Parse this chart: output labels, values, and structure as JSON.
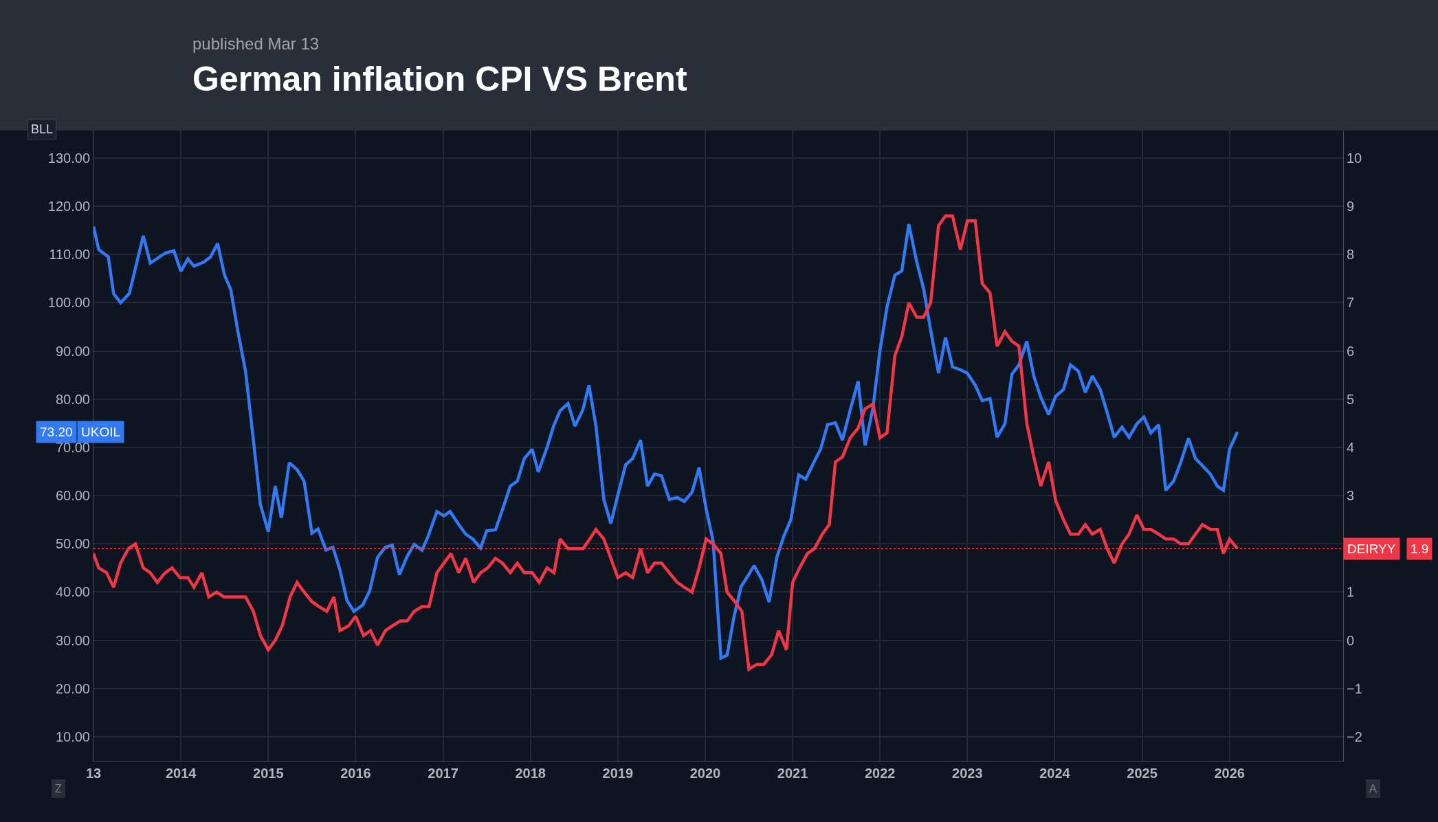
{
  "chart_data": {
    "type": "line",
    "title": "German inflation CPI VS Brent",
    "subtitle": "published Mar 13",
    "xlim": [
      2013,
      2027.3
    ],
    "xticks": [
      {
        "value": 2013,
        "label": "13"
      },
      2014,
      2015,
      2016,
      2017,
      2018,
      2019,
      2020,
      2021,
      2022,
      2023,
      2024,
      2025,
      2026
    ],
    "ylim": [
      5,
      135.7
    ],
    "yticks": [
      {
        "value": 10,
        "label": "10.00"
      },
      {
        "value": 20,
        "label": "20.00"
      },
      {
        "value": 30,
        "label": "30.00"
      },
      {
        "value": 40,
        "label": "40.00"
      },
      {
        "value": 50,
        "label": "50.00"
      },
      {
        "value": 60,
        "label": "60.00"
      },
      {
        "value": 70,
        "label": "70.00"
      },
      {
        "value": 80,
        "label": "80.00"
      },
      {
        "value": 90,
        "label": "90.00"
      },
      {
        "value": 100,
        "label": "100.00"
      },
      {
        "value": 110,
        "label": "110.00"
      },
      {
        "value": 120,
        "label": "120.00"
      },
      {
        "value": 130,
        "label": "130.00"
      }
    ],
    "y2lim": [
      -2.5,
      10.57
    ],
    "y2ticks": [
      {
        "value": -2,
        "label": "−2"
      },
      {
        "value": -1,
        "label": "−1"
      },
      0,
      1,
      3,
      4,
      5,
      6,
      7,
      8,
      9,
      10
    ],
    "grid": true,
    "legend": "left",
    "marker": "none",
    "line_style": "solid",
    "series": [
      {
        "name": "UKOIL",
        "color": "#3179f5",
        "x": [
          2013.0,
          2013.06,
          2013.17,
          2013.23,
          2013.31,
          2013.41,
          2013.57,
          2013.65,
          2013.82,
          2013.92,
          2014.0,
          2014.08,
          2014.15,
          2014.26,
          2014.34,
          2014.42,
          2014.5,
          2014.57,
          2014.65,
          2014.74,
          2014.83,
          2014.91,
          2015.0,
          2015.08,
          2015.15,
          2015.24,
          2015.33,
          2015.41,
          2015.5,
          2015.57,
          2015.66,
          2015.74,
          2015.82,
          2015.9,
          2015.98,
          2016.08,
          2016.16,
          2016.25,
          2016.34,
          2016.42,
          2016.5,
          2016.59,
          2016.67,
          2016.76,
          2016.83,
          2016.93,
          2017.01,
          2017.08,
          2017.18,
          2017.26,
          2017.34,
          2017.43,
          2017.5,
          2017.6,
          2017.68,
          2017.77,
          2017.85,
          2017.93,
          2018.02,
          2018.09,
          2018.19,
          2018.27,
          2018.34,
          2018.43,
          2018.51,
          2018.6,
          2018.67,
          2018.75,
          2018.84,
          2018.92,
          2019.0,
          2019.09,
          2019.17,
          2019.26,
          2019.34,
          2019.42,
          2019.5,
          2019.59,
          2019.68,
          2019.76,
          2019.85,
          2019.93,
          2020.01,
          2020.09,
          2020.18,
          2020.25,
          2020.33,
          2020.41,
          2020.49,
          2020.56,
          2020.65,
          2020.73,
          2020.82,
          2020.9,
          2020.98,
          2021.07,
          2021.15,
          2021.24,
          2021.32,
          2021.4,
          2021.49,
          2021.57,
          2021.66,
          2021.75,
          2021.83,
          2021.92,
          2022.0,
          2022.08,
          2022.17,
          2022.25,
          2022.33,
          2022.42,
          2022.5,
          2022.58,
          2022.67,
          2022.75,
          2022.83,
          2022.92,
          2023.0,
          2023.09,
          2023.17,
          2023.26,
          2023.34,
          2023.43,
          2023.51,
          2023.59,
          2023.68,
          2023.76,
          2023.84,
          2023.93,
          2024.01,
          2024.1,
          2024.18,
          2024.27,
          2024.35,
          2024.43,
          2024.52,
          2024.6,
          2024.68,
          2024.77,
          2024.85,
          2024.94,
          2025.02,
          2025.1,
          2025.19,
          2025.27,
          2025.36,
          2025.44,
          2025.53,
          2025.61,
          2025.69,
          2025.78,
          2025.86,
          2025.93,
          2026.0,
          2026.09
        ],
        "values": [
          115.8,
          111,
          109.5,
          101.9,
          100,
          101.9,
          113.9,
          108.2,
          110.3,
          110.8,
          106.5,
          109.1,
          107.6,
          108.4,
          109.5,
          112.3,
          105.7,
          102.8,
          94.3,
          85.8,
          71.5,
          58.2,
          52.5,
          62,
          55.4,
          66.8,
          65.4,
          63,
          52.2,
          53.1,
          48.7,
          49.3,
          44.6,
          38.3,
          36,
          37.3,
          40.2,
          47.2,
          49.3,
          49.7,
          43.6,
          47.4,
          49.9,
          48.7,
          51.6,
          56.7,
          55.8,
          56.7,
          54,
          52,
          51,
          49.1,
          52.7,
          52.9,
          57.1,
          62,
          63,
          67.7,
          69.6,
          64.9,
          70,
          74.7,
          77.6,
          79.1,
          74.4,
          77.8,
          82.9,
          74.4,
          59.2,
          54.2,
          60.1,
          66.4,
          67.7,
          71.5,
          62,
          64.5,
          64.1,
          59.2,
          59.6,
          58.8,
          60.7,
          65.8,
          57.3,
          50.6,
          26.3,
          26.9,
          34.9,
          41.1,
          43.4,
          45.5,
          42.5,
          37.9,
          47.2,
          51.6,
          55,
          64.3,
          63.4,
          66.8,
          69.6,
          74.7,
          75.1,
          71.5,
          77.8,
          83.7,
          70.4,
          78.2,
          90.1,
          99.1,
          105.7,
          106.6,
          116.3,
          108.5,
          102.8,
          94.3,
          85.4,
          92.8,
          86.7,
          86.1,
          85.4,
          82.9,
          79.7,
          80.1,
          72.1,
          74.9,
          85.2,
          87.1,
          92,
          84.8,
          80.4,
          76.8,
          80.6,
          82,
          87.1,
          85.8,
          81.4,
          84.8,
          82,
          77.2,
          72.1,
          74.2,
          72.1,
          74.9,
          76.3,
          73,
          74.7,
          61.1,
          63,
          66.8,
          71.9,
          67.7,
          66.2,
          64.5,
          62,
          61.1,
          69.6,
          73.2
        ]
      },
      {
        "name": "DEIRYY",
        "color": "#f23645",
        "axis": "y2",
        "x": [
          2013.0,
          2013.06,
          2013.15,
          2013.23,
          2013.31,
          2013.4,
          2013.48,
          2013.57,
          2013.65,
          2013.73,
          2013.82,
          2013.9,
          2013.99,
          2014.08,
          2014.15,
          2014.24,
          2014.32,
          2014.41,
          2014.49,
          2014.57,
          2014.74,
          2014.83,
          2014.91,
          2015.0,
          2015.08,
          2015.16,
          2015.25,
          2015.33,
          2015.41,
          2015.5,
          2015.58,
          2015.67,
          2015.75,
          2015.82,
          2015.92,
          2016.0,
          2016.09,
          2016.17,
          2016.25,
          2016.34,
          2016.42,
          2016.51,
          2016.59,
          2016.67,
          2016.76,
          2016.84,
          2016.93,
          2017.01,
          2017.09,
          2017.18,
          2017.26,
          2017.35,
          2017.43,
          2017.51,
          2017.6,
          2017.68,
          2017.77,
          2017.85,
          2017.93,
          2018.02,
          2018.1,
          2018.19,
          2018.27,
          2018.34,
          2018.43,
          2018.6,
          2018.68,
          2018.75,
          2018.84,
          2018.92,
          2019.0,
          2019.09,
          2019.17,
          2019.26,
          2019.34,
          2019.42,
          2019.5,
          2019.59,
          2019.68,
          2019.76,
          2019.85,
          2019.93,
          2020.01,
          2020.09,
          2020.18,
          2020.25,
          2020.34,
          2020.42,
          2020.5,
          2020.59,
          2020.67,
          2020.76,
          2020.84,
          2020.93,
          2021.0,
          2021.08,
          2021.17,
          2021.25,
          2021.34,
          2021.42,
          2021.49,
          2021.57,
          2021.66,
          2021.75,
          2021.83,
          2021.92,
          2022.0,
          2022.08,
          2022.17,
          2022.25,
          2022.33,
          2022.42,
          2022.5,
          2022.58,
          2022.67,
          2022.75,
          2022.83,
          2022.92,
          2023.0,
          2023.09,
          2023.17,
          2023.26,
          2023.34,
          2023.43,
          2023.51,
          2023.59,
          2023.68,
          2023.76,
          2023.84,
          2023.93,
          2024.01,
          2024.1,
          2024.18,
          2024.27,
          2024.35,
          2024.43,
          2024.52,
          2024.6,
          2024.68,
          2024.77,
          2024.85,
          2024.94,
          2025.02,
          2025.1,
          2025.19,
          2025.27,
          2025.36,
          2025.44,
          2025.53,
          2025.61,
          2025.69,
          2025.78,
          2025.86,
          2025.93,
          2026.0,
          2026.09
        ],
        "values": [
          1.8,
          1.5,
          1.4,
          1.1,
          1.6,
          1.9,
          2.0,
          1.5,
          1.4,
          1.2,
          1.4,
          1.5,
          1.3,
          1.3,
          1.1,
          1.4,
          0.9,
          1.0,
          0.9,
          0.9,
          0.9,
          0.6,
          0.1,
          -0.2,
          0.0,
          0.3,
          0.9,
          1.2,
          1.0,
          0.8,
          0.7,
          0.6,
          0.9,
          0.2,
          0.3,
          0.5,
          0.1,
          0.2,
          -0.1,
          0.2,
          0.3,
          0.4,
          0.4,
          0.6,
          0.7,
          0.7,
          1.4,
          1.6,
          1.8,
          1.4,
          1.7,
          1.2,
          1.4,
          1.5,
          1.7,
          1.6,
          1.4,
          1.6,
          1.4,
          1.4,
          1.2,
          1.5,
          1.4,
          2.1,
          1.9,
          1.9,
          2.1,
          2.3,
          2.1,
          1.7,
          1.3,
          1.4,
          1.3,
          1.9,
          1.4,
          1.6,
          1.6,
          1.4,
          1.2,
          1.1,
          1.0,
          1.5,
          2.1,
          2.0,
          1.8,
          1.0,
          0.8,
          0.6,
          -0.6,
          -0.5,
          -0.5,
          -0.3,
          0.2,
          -0.2,
          1.2,
          1.5,
          1.8,
          1.9,
          2.2,
          2.4,
          3.7,
          3.8,
          4.2,
          4.4,
          4.8,
          4.9,
          4.2,
          4.3,
          5.9,
          6.3,
          7.0,
          6.7,
          6.7,
          7.0,
          8.6,
          8.8,
          8.8,
          8.1,
          8.7,
          8.7,
          7.4,
          7.2,
          6.1,
          6.4,
          6.2,
          6.1,
          4.5,
          3.8,
          3.2,
          3.7,
          2.9,
          2.5,
          2.2,
          2.2,
          2.4,
          2.2,
          2.3,
          1.9,
          1.6,
          2.0,
          2.2,
          2.6,
          2.3,
          2.3,
          2.2,
          2.1,
          2.1,
          2.0,
          2.0,
          2.2,
          2.4,
          2.3,
          2.3,
          1.8,
          2.1,
          1.9
        ]
      }
    ],
    "ref_lines": [
      {
        "axis": "y2",
        "value": 1.9,
        "color": "#f23645",
        "line_style": "dotted"
      }
    ],
    "annotations": [
      "73.20",
      "1.9",
      "BLL",
      "Z",
      "A"
    ]
  }
}
